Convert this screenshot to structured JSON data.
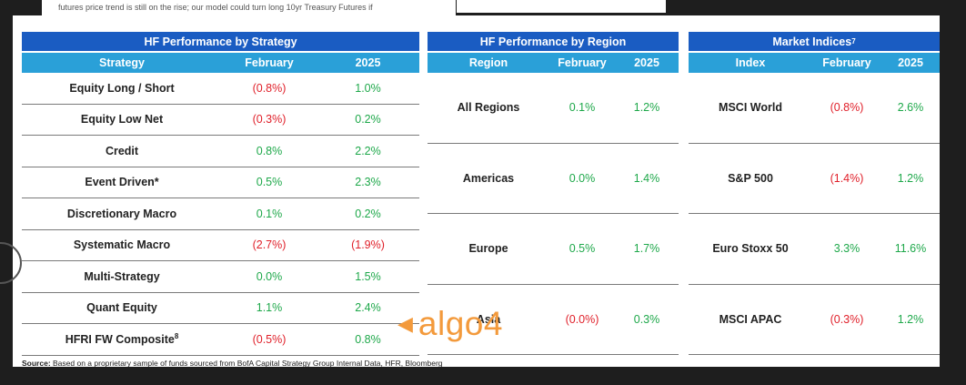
{
  "top_note": "futures price trend is still on the rise; our model could turn long 10yr Treasury Futures if",
  "strategy_table": {
    "title": "HF Performance by Strategy",
    "headers": [
      "Strategy",
      "February",
      "2025"
    ],
    "rows": [
      {
        "name": "Equity Long / Short",
        "feb": "(0.8%)",
        "ytd": "1.0%"
      },
      {
        "name": "Equity Low Net",
        "feb": "(0.3%)",
        "ytd": "0.2%"
      },
      {
        "name": "Credit",
        "feb": "0.8%",
        "ytd": "2.2%"
      },
      {
        "name": "Event Driven*",
        "feb": "0.5%",
        "ytd": "2.3%"
      },
      {
        "name": "Discretionary Macro",
        "feb": "0.1%",
        "ytd": "0.2%"
      },
      {
        "name": "Systematic Macro",
        "feb": "(2.7%)",
        "ytd": "(1.9%)"
      },
      {
        "name": "Multi-Strategy",
        "feb": "0.0%",
        "ytd": "1.5%"
      },
      {
        "name": "Quant Equity",
        "feb": "1.1%",
        "ytd": "2.4%"
      },
      {
        "name": "HFRI FW Composite",
        "sup": "8",
        "feb": "(0.5%)",
        "ytd": "0.8%"
      }
    ]
  },
  "region_table": {
    "title": "HF Performance by Region",
    "headers": [
      "Region",
      "February",
      "2025"
    ],
    "rows": [
      {
        "name": "All Regions",
        "feb": "0.1%",
        "ytd": "1.2%"
      },
      {
        "name": "Americas",
        "feb": "0.0%",
        "ytd": "1.4%"
      },
      {
        "name": "Europe",
        "feb": "0.5%",
        "ytd": "1.7%"
      },
      {
        "name": "Asia",
        "feb": "(0.0%)",
        "ytd": "0.3%"
      }
    ]
  },
  "index_table": {
    "title": "Market Indices",
    "title_sup": "7",
    "headers": [
      "Index",
      "February",
      "2025"
    ],
    "rows": [
      {
        "name": "MSCI World",
        "feb": "(0.8%)",
        "ytd": "2.6%"
      },
      {
        "name": "S&P 500",
        "feb": "(1.4%)",
        "ytd": "1.2%"
      },
      {
        "name": "Euro Stoxx 50",
        "feb": "3.3%",
        "ytd": "11.6%"
      },
      {
        "name": "MSCI APAC",
        "feb": "(0.3%)",
        "ytd": "1.2%"
      }
    ]
  },
  "source": {
    "label": "Source:",
    "text": " Based on a proprietary sample of funds sourced from BofA Capital Strategy Group Internal Data, HFR, Bloomberg"
  },
  "watermark": {
    "arrow": "◀",
    "text": "algo4"
  },
  "colors": {
    "negative": "#e0202a",
    "positive": "#1ea84a",
    "title_bar": "#1a5cc2",
    "header_bar": "#2aa0d8"
  }
}
